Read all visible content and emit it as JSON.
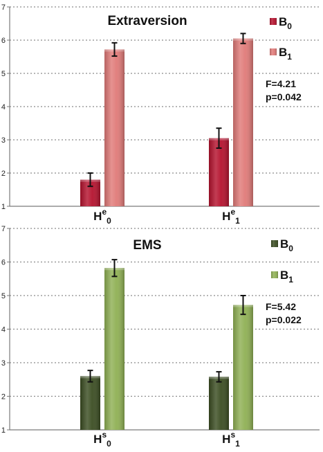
{
  "chart_data": [
    {
      "type": "bar",
      "title": "Extraversion",
      "ylim": [
        1,
        7
      ],
      "yticks": [
        "1",
        "2",
        "3",
        "4",
        "5",
        "6",
        "7"
      ],
      "grid": true,
      "legend_position": "top-right",
      "categories": [
        {
          "base": "H",
          "sup": "e",
          "sub": "0"
        },
        {
          "base": "H",
          "sup": "e",
          "sub": "1"
        }
      ],
      "series": [
        {
          "name": "B",
          "name_sub": "0",
          "color": "#b5122e",
          "values": [
            1.8,
            3.05
          ],
          "errors": [
            0.2,
            0.3
          ]
        },
        {
          "name": "B",
          "name_sub": "1",
          "color": "#e07a78",
          "values": [
            5.72,
            6.05
          ],
          "errors": [
            0.2,
            0.15
          ]
        }
      ],
      "annotation": [
        "F=4.21",
        "p=0.042"
      ]
    },
    {
      "type": "bar",
      "title": "EMS",
      "ylim": [
        1,
        7
      ],
      "yticks": [
        "1",
        "2",
        "3",
        "4",
        "5",
        "6",
        "7"
      ],
      "grid": true,
      "legend_position": "top-right",
      "categories": [
        {
          "base": "H",
          "sup": "s",
          "sub": "0"
        },
        {
          "base": "H",
          "sup": "s",
          "sub": "1"
        }
      ],
      "series": [
        {
          "name": "B",
          "name_sub": "0",
          "color": "#3b4d22",
          "values": [
            2.6,
            2.58
          ],
          "errors": [
            0.17,
            0.15
          ]
        },
        {
          "name": "B",
          "name_sub": "1",
          "color": "#8fb054",
          "values": [
            5.82,
            4.72
          ],
          "errors": [
            0.25,
            0.28
          ]
        }
      ],
      "annotation": [
        "F=5.42",
        "p=0.022"
      ]
    }
  ]
}
